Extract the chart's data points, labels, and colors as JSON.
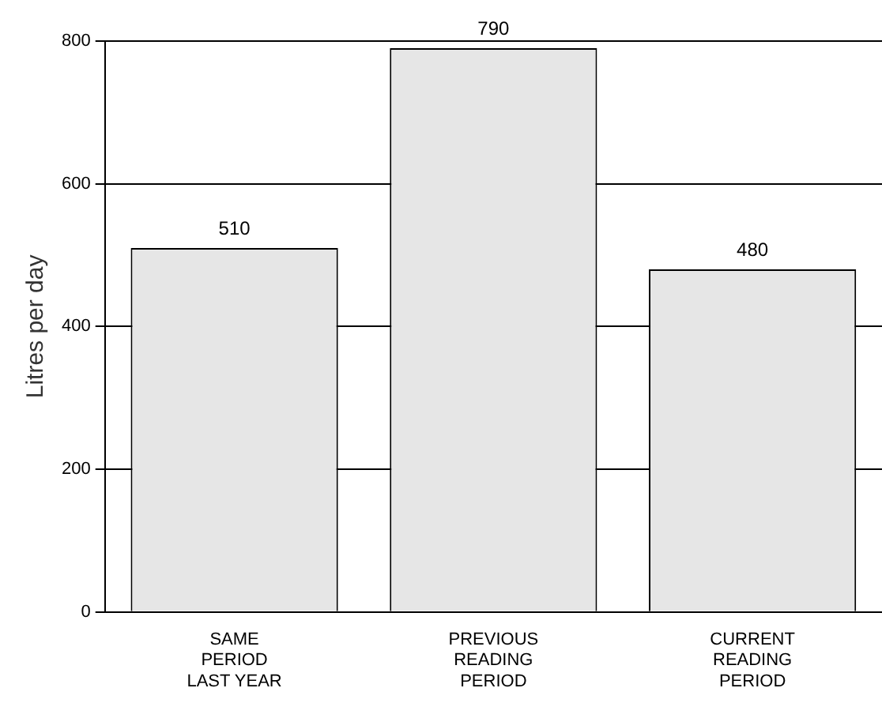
{
  "chart_data": {
    "type": "bar",
    "ylabel": "Litres per day",
    "categories": [
      "SAME\nPERIOD\nLAST YEAR",
      "PREVIOUS\nREADING\nPERIOD",
      "CURRENT\nREADING\nPERIOD"
    ],
    "values": [
      510,
      790,
      480
    ],
    "color": "#e6e6e6",
    "ylim": [
      0,
      800
    ],
    "yticks": [
      0,
      200,
      400,
      600,
      800
    ],
    "grid": "y",
    "data_labels": true
  }
}
